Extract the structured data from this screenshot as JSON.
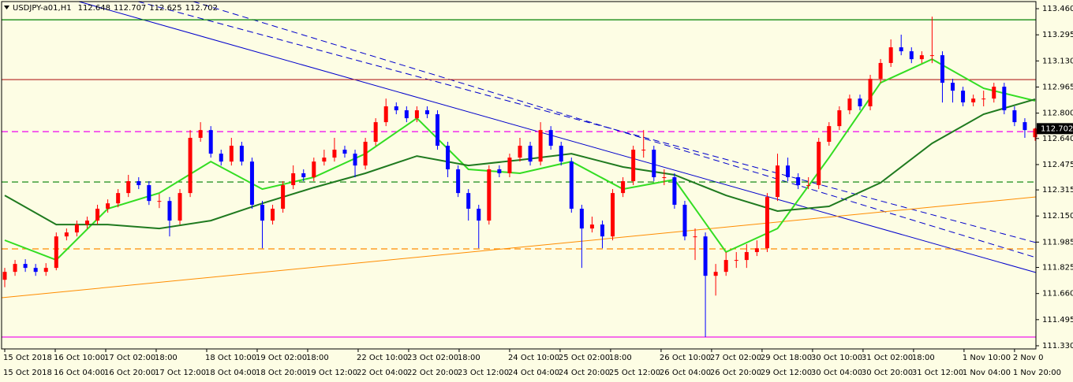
{
  "chart_data": {
    "type": "candlestick",
    "symbol": "USDJPY-a01,H1",
    "up_color": "#ff0000",
    "down_color": "#0000ff",
    "ylim": [
      111.31,
      113.505
    ],
    "yticks": [
      {
        "value": 113.46,
        "label": "113.460"
      },
      113.295,
      {
        "value": 113.13,
        "label": "113.130"
      },
      112.965,
      {
        "value": 112.8,
        "label": "112.800"
      },
      {
        "value": 112.64,
        "label": "112.640"
      },
      112.475,
      112.315,
      {
        "value": 112.15,
        "label": "112.150"
      },
      111.985,
      111.825,
      {
        "value": 111.66,
        "label": "111.660"
      },
      111.495,
      {
        "value": 111.33,
        "label": "111.330"
      }
    ],
    "xlim": [
      0,
      100.5
    ],
    "xticks": [
      {
        "value": 0,
        "label": "15 Oct 2018"
      },
      {
        "value": 4.9,
        "label": "16 Oct 10:00"
      },
      {
        "value": 9.8,
        "label": "17 Oct 02:00"
      },
      {
        "value": 14.7,
        "label": "18:00"
      },
      {
        "value": 19.6,
        "label": "18 Oct 10:00"
      },
      {
        "value": 24.5,
        "label": "19 Oct 02:00"
      },
      {
        "value": 29.4,
        "label": "18:00"
      },
      {
        "value": 34.3,
        "label": "22 Oct 10:00"
      },
      {
        "value": 39.2,
        "label": "23 Oct 02:00"
      },
      {
        "value": 44.1,
        "label": "18:00"
      },
      {
        "value": 49,
        "label": "24 Oct 10:00"
      },
      {
        "value": 53.9,
        "label": "25 Oct 02:00"
      },
      {
        "value": 58.8,
        "label": "18:00"
      },
      {
        "value": 63.7,
        "label": "26 Oct 10:00"
      },
      {
        "value": 68.6,
        "label": "27 Oct 02:00"
      },
      {
        "value": 73.5,
        "label": "29 Oct 18:00"
      },
      {
        "value": 78.4,
        "label": "30 Oct 10:00"
      },
      {
        "value": 83.3,
        "label": "31 Oct 02:00"
      },
      {
        "value": 88.2,
        "label": "18:00"
      },
      {
        "value": 93.1,
        "label": "1 Nov 10:00"
      },
      {
        "value": 98,
        "label": "2 Nov 0"
      }
    ],
    "xticks_lower": [
      "15 Oct 2018",
      "16 Oct 04:00",
      "16 Oct 20:00",
      "17 Oct 12:00",
      "18 Oct 04:00",
      "18 Oct 20:00",
      "19 Oct 12:00",
      "22 Oct 04:00",
      "22 Oct 20:00",
      "23 Oct 12:00",
      "24 Oct 04:00",
      "24 Oct 20:00",
      "25 Oct 12:00",
      "26 Oct 04:00",
      "26 Oct 20:00",
      "29 Oct 12:00",
      "30 Oct 04:00",
      "30 Oct 20:00",
      "31 Oct 12:00",
      "1 Nov 04:00",
      "1 Nov 20:00"
    ],
    "open": [
      111.747,
      111.797,
      111.847,
      111.822,
      111.797,
      111.822,
      112.021,
      112.046,
      112.096,
      112.121,
      112.196,
      112.23,
      112.295,
      112.37,
      112.345,
      112.245,
      112.245,
      112.121,
      112.295,
      112.644,
      112.693,
      112.544,
      112.494,
      112.594,
      112.494,
      112.221,
      112.121,
      112.196,
      112.345,
      112.42,
      112.395,
      112.494,
      112.519,
      112.569,
      112.544,
      112.469,
      112.619,
      112.743,
      112.843,
      112.818,
      112.768,
      112.818,
      112.793,
      112.594,
      112.445,
      112.295,
      112.196,
      112.121,
      112.445,
      112.42,
      112.519,
      112.594,
      112.494,
      112.693,
      112.594,
      112.494,
      112.196,
      112.071,
      112.096,
      112.021,
      112.295,
      112.37,
      112.569,
      112.569,
      112.395,
      112.395,
      112.221,
      112.021,
      112.021,
      111.772,
      111.797,
      111.872,
      111.872,
      111.922,
      111.946,
      112.27,
      112.469,
      112.395,
      112.345,
      112.345,
      112.619,
      112.718,
      112.818,
      112.892,
      112.843,
      113.017,
      113.117,
      113.216,
      113.191,
      113.141,
      113.166,
      113.166,
      112.992,
      112.942,
      112.868,
      112.892,
      112.892,
      112.967,
      112.818,
      112.743,
      112.648
    ],
    "high": [
      111.822,
      111.872,
      111.877,
      111.847,
      111.852,
      112.046,
      112.071,
      112.121,
      112.146,
      112.221,
      112.255,
      112.32,
      112.41,
      112.395,
      112.37,
      112.29,
      112.27,
      112.32,
      112.693,
      112.743,
      112.718,
      112.569,
      112.644,
      112.619,
      112.519,
      112.246,
      112.221,
      112.37,
      112.47,
      112.445,
      112.519,
      112.569,
      112.644,
      112.594,
      112.569,
      112.644,
      112.768,
      112.892,
      112.868,
      112.843,
      112.843,
      112.843,
      112.818,
      112.619,
      112.47,
      112.32,
      112.221,
      112.47,
      112.47,
      112.544,
      112.644,
      112.619,
      112.743,
      112.718,
      112.619,
      112.519,
      112.221,
      112.146,
      112.121,
      112.32,
      112.395,
      112.594,
      112.693,
      112.594,
      112.445,
      112.42,
      112.246,
      112.071,
      112.046,
      111.847,
      111.922,
      111.922,
      111.972,
      111.996,
      112.295,
      112.544,
      112.519,
      112.42,
      112.395,
      112.644,
      112.743,
      112.843,
      112.917,
      112.917,
      113.042,
      113.142,
      113.266,
      113.296,
      113.216,
      113.191,
      113.41,
      113.191,
      113.017,
      112.967,
      112.917,
      112.942,
      112.992,
      112.992,
      112.843,
      112.768,
      112.707
    ],
    "low": [
      111.7,
      111.772,
      111.797,
      111.772,
      111.772,
      111.807,
      111.996,
      112.021,
      112.071,
      112.096,
      112.171,
      112.205,
      112.27,
      112.32,
      112.22,
      112.2,
      112.021,
      112.096,
      112.27,
      112.619,
      112.519,
      112.469,
      112.469,
      112.469,
      112.196,
      111.946,
      112.096,
      112.171,
      112.32,
      112.37,
      112.37,
      112.469,
      112.494,
      112.519,
      112.395,
      112.444,
      112.594,
      112.718,
      112.793,
      112.743,
      112.743,
      112.768,
      112.569,
      112.395,
      112.27,
      112.121,
      111.946,
      112.096,
      112.395,
      112.395,
      112.494,
      112.469,
      112.469,
      112.569,
      112.469,
      112.171,
      111.822,
      112.046,
      111.946,
      111.996,
      112.27,
      112.345,
      112.519,
      112.37,
      112.345,
      112.196,
      111.996,
      111.872,
      111.385,
      111.647,
      111.772,
      111.822,
      111.822,
      111.897,
      111.922,
      112.245,
      112.37,
      112.32,
      112.32,
      112.32,
      112.594,
      112.693,
      112.793,
      112.818,
      112.818,
      112.992,
      113.092,
      113.166,
      113.116,
      113.116,
      113.116,
      112.867,
      112.867,
      112.843,
      112.843,
      112.843,
      112.867,
      112.793,
      112.718,
      112.644,
      112.625
    ],
    "close": [
      111.797,
      111.847,
      111.822,
      111.797,
      111.822,
      112.021,
      112.046,
      112.096,
      112.121,
      112.196,
      112.23,
      112.295,
      112.37,
      112.345,
      112.245,
      112.245,
      112.121,
      112.295,
      112.644,
      112.693,
      112.544,
      112.494,
      112.594,
      112.494,
      112.221,
      112.121,
      112.196,
      112.345,
      112.42,
      112.395,
      112.494,
      112.519,
      112.569,
      112.544,
      112.469,
      112.619,
      112.743,
      112.843,
      112.818,
      112.768,
      112.818,
      112.793,
      112.594,
      112.445,
      112.295,
      112.196,
      112.121,
      112.445,
      112.42,
      112.519,
      112.594,
      112.494,
      112.693,
      112.594,
      112.494,
      112.196,
      112.071,
      112.096,
      112.021,
      112.295,
      112.37,
      112.569,
      112.569,
      112.395,
      112.395,
      112.221,
      112.021,
      112.021,
      111.772,
      111.797,
      111.872,
      111.872,
      111.922,
      111.946,
      112.27,
      112.469,
      112.395,
      112.345,
      112.345,
      112.619,
      112.718,
      112.818,
      112.892,
      112.843,
      113.017,
      113.117,
      113.216,
      113.191,
      113.141,
      113.166,
      113.166,
      112.992,
      112.942,
      112.868,
      112.892,
      112.892,
      112.967,
      112.818,
      112.743,
      112.693,
      112.702
    ],
    "series": [
      {
        "color": "#33dd22",
        "x": [
          0,
          5,
          10,
          15,
          20,
          25,
          30,
          35,
          40,
          45,
          50,
          55,
          60,
          65,
          70,
          75,
          80,
          85,
          90,
          95,
          100
        ],
        "values": [
          111.997,
          111.872,
          112.196,
          112.295,
          112.494,
          112.32,
          112.395,
          112.544,
          112.768,
          112.445,
          112.42,
          112.494,
          112.32,
          112.38,
          111.922,
          112.071,
          112.519,
          112.992,
          113.141,
          112.957,
          112.878
        ]
      },
      {
        "color": "#1f7a1f",
        "x": [
          0,
          5,
          10,
          15,
          20,
          25,
          30,
          35,
          40,
          45,
          50,
          55,
          60,
          65,
          70,
          75,
          80,
          85,
          90,
          95,
          100
        ],
        "values": [
          112.28,
          112.096,
          112.096,
          112.071,
          112.121,
          112.23,
          112.33,
          112.42,
          112.529,
          112.469,
          112.504,
          112.544,
          112.46,
          112.41,
          112.28,
          112.181,
          112.211,
          112.36,
          112.609,
          112.793,
          112.888
        ]
      }
    ],
    "levels": [
      {
        "value": 113.39,
        "color": "#008000",
        "dashed": false
      },
      {
        "value": 113.012,
        "color": "#b22222",
        "dashed": false
      },
      {
        "value": 112.683,
        "color": "#ee00ee",
        "dashed": true
      },
      {
        "value": 112.365,
        "color": "#008000",
        "dashed": true
      },
      {
        "value": 111.942,
        "color": "#ff8c00",
        "dashed": true
      },
      {
        "value": 111.385,
        "color": "#ee00ee",
        "dashed": false
      }
    ]
  }
}
